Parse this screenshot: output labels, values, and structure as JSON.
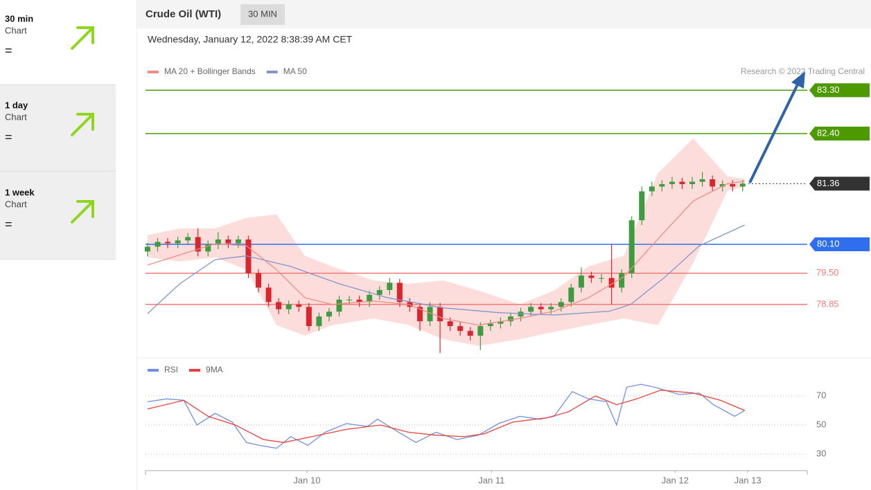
{
  "sidebar": [
    {
      "period": "30 min",
      "label": "Chart",
      "signal": "="
    },
    {
      "period": "1 day",
      "label": "Chart",
      "signal": "="
    },
    {
      "period": "1 week",
      "label": "Chart",
      "signal": "="
    }
  ],
  "header": {
    "instrument": "Crude Oil (WTI)",
    "interval": "30 MIN",
    "timestamp": "Wednesday, January 12, 2022 8:38:39 AM CET",
    "credit": "Research © 2022 Trading Central"
  },
  "chart_data": [
    {
      "type": "candlestick",
      "up_color": "#3f9b3f",
      "down_color": "#d9262e",
      "xlim": [
        -0.2,
        65.4
      ],
      "ylim": [
        77.77,
        83.45
      ],
      "open": [
        79.95,
        80.05,
        80.15,
        80.12,
        80.18,
        80.25,
        79.95,
        80.1,
        80.2,
        80.12,
        80.2,
        79.5,
        79.2,
        78.9,
        78.75,
        78.85,
        78.8,
        78.4,
        78.6,
        78.7,
        78.95,
        78.95,
        78.9,
        79.05,
        79.15,
        79.3,
        78.9,
        78.8,
        78.5,
        78.8,
        78.5,
        78.4,
        78.3,
        78.2,
        78.4,
        78.45,
        78.5,
        78.6,
        78.7,
        78.8,
        78.75,
        78.8,
        78.9,
        79.2,
        79.45,
        79.4,
        79.4,
        79.2,
        79.5,
        80.6,
        81.2,
        81.3,
        81.35,
        81.4,
        81.35,
        81.4,
        81.45,
        81.3,
        81.35,
        81.3
      ],
      "high": [
        80.13,
        80.23,
        80.23,
        80.26,
        80.33,
        80.43,
        80.18,
        80.35,
        80.28,
        80.28,
        80.28,
        79.58,
        79.28,
        78.98,
        78.93,
        78.93,
        78.88,
        78.68,
        78.78,
        79.03,
        79.03,
        79.03,
        79.13,
        79.23,
        79.4,
        79.38,
        78.98,
        78.88,
        78.9,
        78.88,
        78.58,
        78.48,
        78.38,
        78.48,
        78.53,
        78.58,
        78.68,
        78.78,
        78.88,
        78.88,
        78.88,
        78.98,
        79.28,
        79.62,
        79.53,
        79.48,
        80.1,
        79.58,
        80.68,
        81.3,
        81.4,
        81.43,
        81.5,
        81.48,
        81.5,
        81.6,
        81.53,
        81.43,
        81.43,
        81.44
      ],
      "low": [
        79.85,
        79.95,
        80.02,
        80.02,
        80.08,
        79.85,
        79.85,
        80.0,
        80.02,
        80.02,
        79.4,
        79.1,
        78.8,
        78.65,
        78.65,
        78.7,
        78.3,
        78.3,
        78.5,
        78.6,
        78.85,
        78.8,
        78.8,
        78.95,
        79.05,
        78.8,
        78.7,
        78.3,
        78.4,
        77.84,
        78.3,
        78.2,
        78.1,
        77.9,
        78.3,
        78.35,
        78.4,
        78.5,
        78.6,
        78.65,
        78.65,
        78.7,
        78.8,
        79.1,
        79.3,
        79.3,
        78.85,
        79.1,
        79.4,
        80.5,
        81.1,
        81.2,
        81.25,
        81.25,
        81.25,
        81.3,
        81.2,
        81.2,
        81.2,
        81.2
      ],
      "close": [
        80.05,
        80.15,
        80.12,
        80.18,
        80.25,
        79.95,
        80.1,
        80.2,
        80.12,
        80.2,
        79.5,
        79.2,
        78.9,
        78.75,
        78.85,
        78.8,
        78.4,
        78.6,
        78.7,
        78.95,
        78.95,
        78.9,
        79.05,
        79.15,
        79.3,
        78.9,
        78.8,
        78.5,
        78.8,
        78.5,
        78.4,
        78.3,
        78.2,
        78.4,
        78.45,
        78.5,
        78.6,
        78.7,
        78.8,
        78.75,
        78.8,
        78.9,
        79.2,
        79.45,
        79.4,
        79.4,
        79.2,
        79.5,
        80.6,
        81.2,
        81.3,
        81.35,
        81.4,
        81.35,
        81.4,
        81.45,
        81.3,
        81.35,
        81.3,
        81.36
      ],
      "overlays": [
        {
          "name": "MA 20 + Bollinger Bands",
          "color": "#f28b82",
          "band_color": "#fdd5d3",
          "x": [
            0,
            3.2,
            6.7,
            9.8,
            12.8,
            15.6,
            18.3,
            22.4,
            25.9,
            29.3,
            32.8,
            36.9,
            40.3,
            43.7,
            47.2,
            50.6,
            54.1,
            57.5,
            59.2
          ],
          "values": [
            79.67,
            79.88,
            80.11,
            80.07,
            79.57,
            78.99,
            78.85,
            78.92,
            78.85,
            78.56,
            78.42,
            78.56,
            78.71,
            78.99,
            79.42,
            80.21,
            81.0,
            81.36,
            81.41
          ],
          "upper": [
            80.29,
            80.43,
            80.43,
            80.65,
            80.72,
            79.86,
            79.64,
            79.35,
            79.28,
            79.35,
            79.14,
            78.85,
            79.14,
            79.64,
            79.86,
            81.58,
            82.3,
            81.51,
            81.46
          ],
          "lower": [
            79.83,
            79.74,
            79.83,
            79.57,
            78.42,
            78.2,
            78.42,
            78.56,
            78.42,
            78.13,
            77.99,
            78.13,
            78.28,
            78.42,
            78.56,
            78.42,
            79.71,
            81.22,
            81.29
          ]
        },
        {
          "name": "MA 50",
          "color": "#8296c8",
          "x": [
            0,
            3.2,
            6.7,
            9.8,
            14.2,
            19,
            23.8,
            29.3,
            34.8,
            40.3,
            45.8,
            47.9,
            51.3,
            54.7,
            59.2
          ],
          "values": [
            78.66,
            79.28,
            79.78,
            79.86,
            79.64,
            79.28,
            78.99,
            78.78,
            78.68,
            78.63,
            78.71,
            78.85,
            79.42,
            80.07,
            80.5
          ]
        }
      ],
      "levels": [
        {
          "value": 83.3,
          "label": "83.30",
          "color": "#4c9a00",
          "line": "solid",
          "style": "tag"
        },
        {
          "value": 82.4,
          "label": "82.40",
          "color": "#4c9a00",
          "line": "solid",
          "style": "tag"
        },
        {
          "value": 81.36,
          "label": "81.36",
          "color": "#333333",
          "line": "dotted",
          "style": "tag"
        },
        {
          "value": 80.1,
          "label": "80.10",
          "color": "#2f6fef",
          "line": "solid",
          "style": "tag"
        },
        {
          "value": 79.5,
          "label": "79.50",
          "color": "#f07a7a",
          "line": "solid",
          "style": "text"
        },
        {
          "value": 78.85,
          "label": "78.85",
          "color": "#f07a7a",
          "line": "solid",
          "style": "text"
        }
      ]
    },
    {
      "type": "line",
      "xlim": [
        -0.2,
        65.4
      ],
      "ylim": [
        21,
        80.5
      ],
      "yticks": [
        30,
        50,
        70
      ],
      "grid": true,
      "xticks": [
        {
          "value": 15.8,
          "label": "Jan 10"
        },
        {
          "value": 34.1,
          "label": "Jan 11"
        },
        {
          "value": 52.3,
          "label": "Jan 12"
        },
        {
          "value": 59.5,
          "label": "Jan 13"
        }
      ],
      "series": [
        {
          "name": "RSI",
          "color": "#6f8fe0",
          "x": [
            0,
            1.9,
            3.6,
            4.9,
            6.7,
            8.4,
            9.8,
            11.1,
            12.8,
            14.2,
            15.9,
            17.6,
            19.7,
            21.8,
            22.8,
            24.9,
            26.6,
            28.6,
            30.7,
            32.8,
            34.8,
            36.9,
            38.9,
            40.3,
            42.1,
            43.7,
            45.5,
            46.5,
            47.5,
            48.9,
            50.3,
            52.7,
            54.7,
            56.1,
            58.2,
            59.2
          ],
          "values": [
            66,
            68,
            67,
            50,
            58,
            52,
            38,
            36,
            34,
            42,
            36,
            45,
            51,
            49,
            54,
            45,
            38,
            45,
            40,
            43,
            51,
            56,
            54,
            56,
            73,
            68,
            66,
            50,
            76,
            78,
            76,
            71,
            72,
            64,
            56,
            60
          ]
        },
        {
          "name": "9MA",
          "color": "#e8403a",
          "x": [
            0,
            3.6,
            6,
            8.7,
            11.5,
            13.5,
            16.3,
            19.7,
            23.1,
            25.9,
            28.6,
            31.4,
            33.4,
            36.2,
            39.6,
            41.7,
            44.4,
            46.5,
            48.5,
            50.9,
            54.1,
            56.8,
            59.2
          ],
          "values": [
            61,
            67,
            56,
            50,
            40,
            38,
            42,
            47,
            50,
            45,
            43,
            42,
            44,
            52,
            55,
            59,
            70,
            64,
            68,
            74,
            72,
            67,
            60
          ]
        }
      ]
    }
  ]
}
